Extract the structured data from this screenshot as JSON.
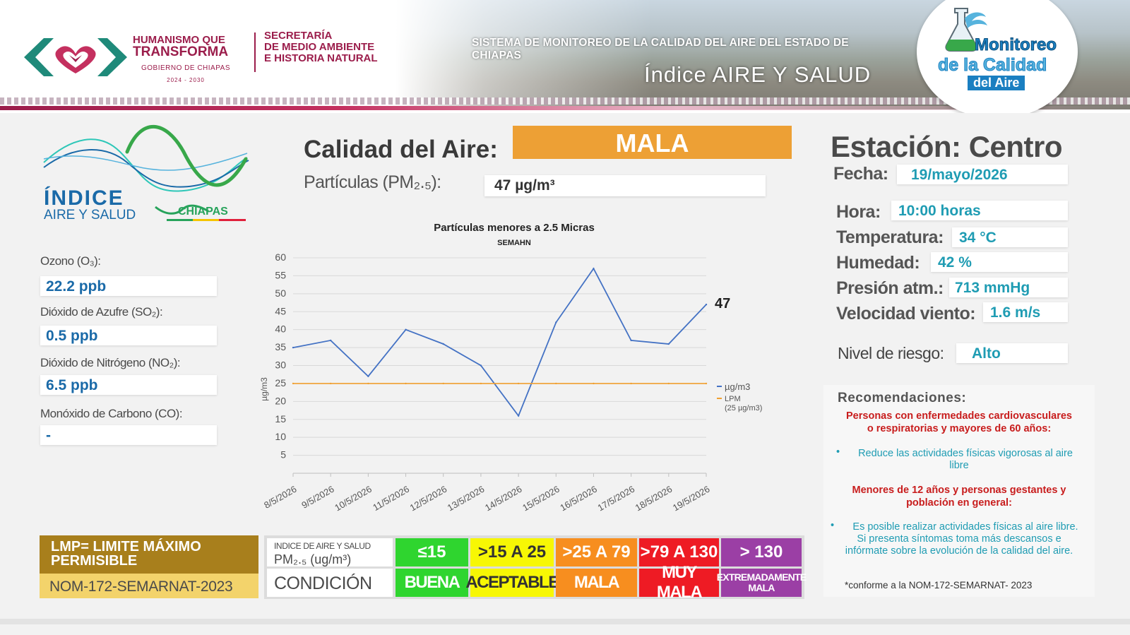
{
  "header": {
    "gov_line1": "HUMANISMO QUE",
    "gov_line2": "TRANSFORMA",
    "gov_line3": "GOBIERNO DE CHIAPAS",
    "gov_line4": "2024 - 2030",
    "secretaria": [
      "SECRETARÍA",
      "DE MEDIO AMBIENTE",
      "E HISTORIA NATURAL"
    ],
    "system_title": "SISTEMA DE MONITOREO DE LA CALIDAD DEL AIRE DEL ESTADO DE CHIAPAS",
    "index_title": "Índice AIRE Y SALUD",
    "monitoreo_logo": [
      "Monitoreo",
      "de la Calidad",
      "del Aire"
    ]
  },
  "index_logo": {
    "line1": "ÍNDICE",
    "line2": "AIRE Y SALUD",
    "line3": "CHIAPAS"
  },
  "pollutants": [
    {
      "label": "Ozono (O₃):",
      "value": "22.2 ppb"
    },
    {
      "label": "Dióxido de Azufre  (SO₂):",
      "value": "0.5 ppb"
    },
    {
      "label": "Dióxido de Nitrógeno (NO₂):",
      "value": "6.5 ppb"
    },
    {
      "label": "Monóxido de Carbono (CO):",
      "value": "-"
    }
  ],
  "calidad": {
    "label": "Calidad del Aire:",
    "value": "MALA",
    "color": "#eda035"
  },
  "pm25": {
    "label": "Partículas (PM₂.₅):",
    "value": "47 µg/m³"
  },
  "chart_data": {
    "type": "line",
    "title": "Partículas menores a 2.5 Micras",
    "subtitle": "SEMAHN",
    "ylabel": "µg/m3",
    "xlabel": "",
    "ylim": [
      0,
      60
    ],
    "yticks": [
      5,
      10,
      15,
      20,
      25,
      30,
      35,
      40,
      45,
      50,
      55,
      60
    ],
    "x": [
      "8/5/2026",
      "9/5/2026",
      "10/5/2026",
      "11/5/2026",
      "12/5/2026",
      "13/5/2026",
      "14/5/2026",
      "15/5/2026",
      "16/5/2026",
      "17/5/2026",
      "18/5/2026",
      "19/5/2026"
    ],
    "series": [
      {
        "name": "µg/m3",
        "color": "#4472c4",
        "values": [
          35,
          37,
          27,
          40,
          36,
          30,
          16,
          42,
          57,
          37,
          36,
          47
        ]
      },
      {
        "name": "LPM",
        "name_sub": "(25 µg/m3)",
        "color": "#f0a030",
        "values": [
          25,
          25,
          25,
          25,
          25,
          25,
          25,
          25,
          25,
          25,
          25,
          25
        ]
      }
    ],
    "last_value_label": "47",
    "grid": true,
    "legend": "right"
  },
  "station": {
    "title": "Estación: Centro",
    "fields": [
      {
        "label": "Fecha:",
        "value": "19/mayo/2026"
      },
      {
        "label": "Hora:",
        "value": "10:00 horas"
      },
      {
        "label": "Temperatura:",
        "value": "34 °C"
      },
      {
        "label": "Humedad:",
        "value": "42 %"
      },
      {
        "label": "Presión atm.:",
        "value": "713 mmHg"
      },
      {
        "label": "Velocidad viento:",
        "value": "1.6 m/s"
      },
      {
        "label": "Nivel de riesgo:",
        "value": "Alto"
      }
    ]
  },
  "recommendations": {
    "title": "Recomendaciones:",
    "group1_title": [
      "Personas con enfermedades cardiovasculares",
      "o respiratorias y mayores de 60 años:"
    ],
    "group1_items": [
      "Reduce las actividades físicas vigorosas al aire",
      "libre"
    ],
    "group2_title": [
      "Menores de 12 años y personas gestantes y",
      "población en general:"
    ],
    "group2_items": [
      "Es posible realizar actividades físicas al aire libre.",
      "Si presenta síntomas toma más descansos e",
      "infórmate sobre la evolución de la calidad del aire."
    ],
    "note": "*conforme a la NOM-172-SEMARNAT- 2023"
  },
  "legend_scale": {
    "lmp_line1": "LMP= LIMITE MÁXIMO",
    "lmp_line2": "PERMISIBLE",
    "nom": "NOM-172-SEMARNAT-2023",
    "head_small": "INDICE DE AIRE Y SALUD",
    "head_pm": "PM₂.₅ (ug/m³)",
    "head_cond": "CONDICIÓN",
    "levels": [
      {
        "range": "≤15",
        "condition": "BUENA",
        "color": "#2fd52f",
        "text": "#ffffff"
      },
      {
        "range": ">15 A 25",
        "condition": "ACEPTABLE",
        "color": "#f7f704",
        "text": "#333333"
      },
      {
        "range": ">25 A 79",
        "condition": "MALA",
        "color": "#f78e1f",
        "text": "#ffffff"
      },
      {
        "range": ">79 A 130",
        "condition": "MUY MALA",
        "color": "#ee1b24",
        "text": "#ffffff"
      },
      {
        "range": "> 130",
        "condition": "EXTREMADAMENTE MALA",
        "color": "#9b3fa5",
        "text": "#ffffff"
      }
    ]
  }
}
